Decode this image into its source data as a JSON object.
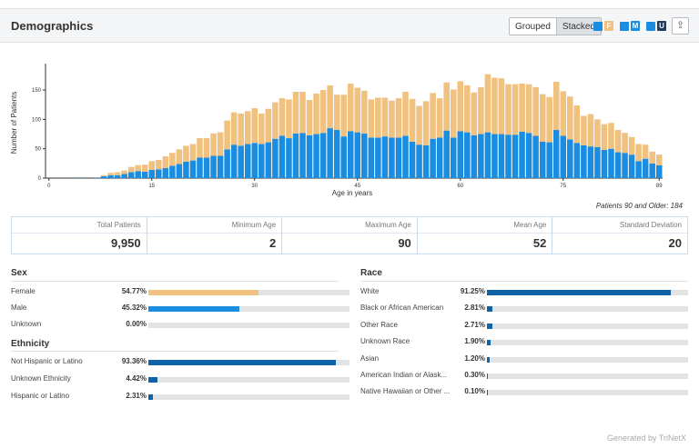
{
  "header": {
    "title": "Demographics",
    "grouped_label": "Grouped",
    "stacked_label": "Stacked",
    "legend": [
      {
        "letter": "F",
        "color": "#f0c17f"
      },
      {
        "letter": "M",
        "color": "#1a8de0"
      },
      {
        "letter": "U",
        "color": "#1f3a5c"
      }
    ],
    "export_icon": "upload-icon"
  },
  "chart_data": {
    "type": "bar",
    "stacked": true,
    "xlabel": "Age in years",
    "ylabel": "Number of Patients",
    "x_ticks": [
      0,
      15,
      30,
      45,
      60,
      75,
      89
    ],
    "y_ticks": [
      0,
      50,
      100,
      150
    ],
    "ylim": [
      0,
      195
    ],
    "xlim": [
      0,
      89
    ],
    "series": [
      {
        "name": "F",
        "color": "#f0c17f",
        "values": [
          0,
          0,
          0,
          0,
          1,
          1,
          0,
          0,
          2,
          4,
          5,
          6,
          9,
          10,
          12,
          15,
          16,
          20,
          22,
          25,
          27,
          28,
          33,
          33,
          38,
          40,
          49,
          55,
          55,
          56,
          59,
          52,
          57,
          62,
          64,
          66,
          71,
          70,
          60,
          69,
          73,
          73,
          60,
          71,
          81,
          76,
          73,
          65,
          68,
          66,
          63,
          67,
          75,
          73,
          66,
          75,
          78,
          67,
          82,
          82,
          85,
          80,
          73,
          80,
          99,
          96,
          95,
          86,
          86,
          82,
          83,
          83,
          81,
          77,
          82,
          76,
          73,
          64,
          50,
          55,
          47,
          44,
          44,
          38,
          34,
          30,
          29,
          24,
          20,
          18
        ]
      },
      {
        "name": "M",
        "color": "#1a8de0",
        "values": [
          0,
          0,
          0,
          0,
          1,
          1,
          0,
          1,
          3,
          5,
          5,
          7,
          10,
          12,
          11,
          14,
          15,
          17,
          21,
          24,
          28,
          30,
          35,
          35,
          38,
          38,
          49,
          57,
          55,
          58,
          60,
          58,
          61,
          67,
          72,
          68,
          76,
          77,
          73,
          75,
          77,
          85,
          82,
          71,
          80,
          78,
          76,
          69,
          69,
          71,
          69,
          69,
          72,
          62,
          57,
          56,
          67,
          69,
          81,
          69,
          80,
          78,
          73,
          75,
          78,
          75,
          75,
          74,
          74,
          79,
          77,
          72,
          62,
          61,
          82,
          72,
          66,
          60,
          56,
          54,
          53,
          48,
          50,
          44,
          43,
          40,
          29,
          33,
          25,
          22
        ]
      },
      {
        "name": "U",
        "color": "#1f3a5c",
        "values": [
          0,
          0,
          0,
          0,
          0,
          0,
          0,
          0,
          0,
          0,
          0,
          0,
          0,
          0,
          0,
          0,
          0,
          0,
          0,
          0,
          0,
          0,
          0,
          0,
          0,
          0,
          0,
          0,
          0,
          0,
          0,
          0,
          0,
          0,
          0,
          0,
          0,
          0,
          0,
          0,
          0,
          0,
          0,
          0,
          0,
          0,
          0,
          0,
          0,
          0,
          0,
          0,
          0,
          0,
          0,
          0,
          0,
          0,
          0,
          0,
          0,
          0,
          0,
          0,
          0,
          0,
          0,
          0,
          0,
          0,
          0,
          0,
          0,
          0,
          0,
          0,
          0,
          0,
          0,
          0,
          0,
          0,
          0,
          0,
          0,
          0,
          0,
          0,
          0,
          0
        ]
      }
    ],
    "note": "Patients 90 and Older: 184"
  },
  "stats": [
    {
      "label": "Total Patients",
      "value": "9,950"
    },
    {
      "label": "Minimum Age",
      "value": "2"
    },
    {
      "label": "Maximum Age",
      "value": "90"
    },
    {
      "label": "Mean Age",
      "value": "52"
    },
    {
      "label": "Standard Deviation",
      "value": "20"
    }
  ],
  "sex": {
    "title": "Sex",
    "rows": [
      {
        "name": "Female",
        "pct": "54.77%",
        "value": 54.77,
        "color": "#f0c17f"
      },
      {
        "name": "Male",
        "pct": "45.32%",
        "value": 45.32,
        "color": "#1a8de0"
      },
      {
        "name": "Unknown",
        "pct": "0.00%",
        "value": 0,
        "color": "#1f3a5c"
      }
    ]
  },
  "ethnicity": {
    "title": "Ethnicity",
    "rows": [
      {
        "name": "Not Hispanic or Latino",
        "pct": "93.36%",
        "value": 93.36,
        "color": "#0f62a8"
      },
      {
        "name": "Unknown Ethnicity",
        "pct": "4.42%",
        "value": 4.42,
        "color": "#0f62a8"
      },
      {
        "name": "Hispanic or Latino",
        "pct": "2.31%",
        "value": 2.31,
        "color": "#0f62a8"
      }
    ]
  },
  "race": {
    "title": "Race",
    "rows": [
      {
        "name": "White",
        "pct": "91.25%",
        "value": 91.25,
        "color": "#0f62a8"
      },
      {
        "name": "Black or African American",
        "pct": "2.81%",
        "value": 2.81,
        "color": "#0f62a8"
      },
      {
        "name": "Other Race",
        "pct": "2.71%",
        "value": 2.71,
        "color": "#0f62a8"
      },
      {
        "name": "Unknown Race",
        "pct": "1.90%",
        "value": 1.9,
        "color": "#0f62a8"
      },
      {
        "name": "Asian",
        "pct": "1.20%",
        "value": 1.2,
        "color": "#0f62a8"
      },
      {
        "name": "American Indian or Alask...",
        "pct": "0.30%",
        "value": 0.3,
        "color": "#0f62a8"
      },
      {
        "name": "Native Hawaiian or Other ...",
        "pct": "0.10%",
        "value": 0.1,
        "color": "#0f62a8"
      }
    ]
  },
  "footer": "Generated by TriNetX"
}
